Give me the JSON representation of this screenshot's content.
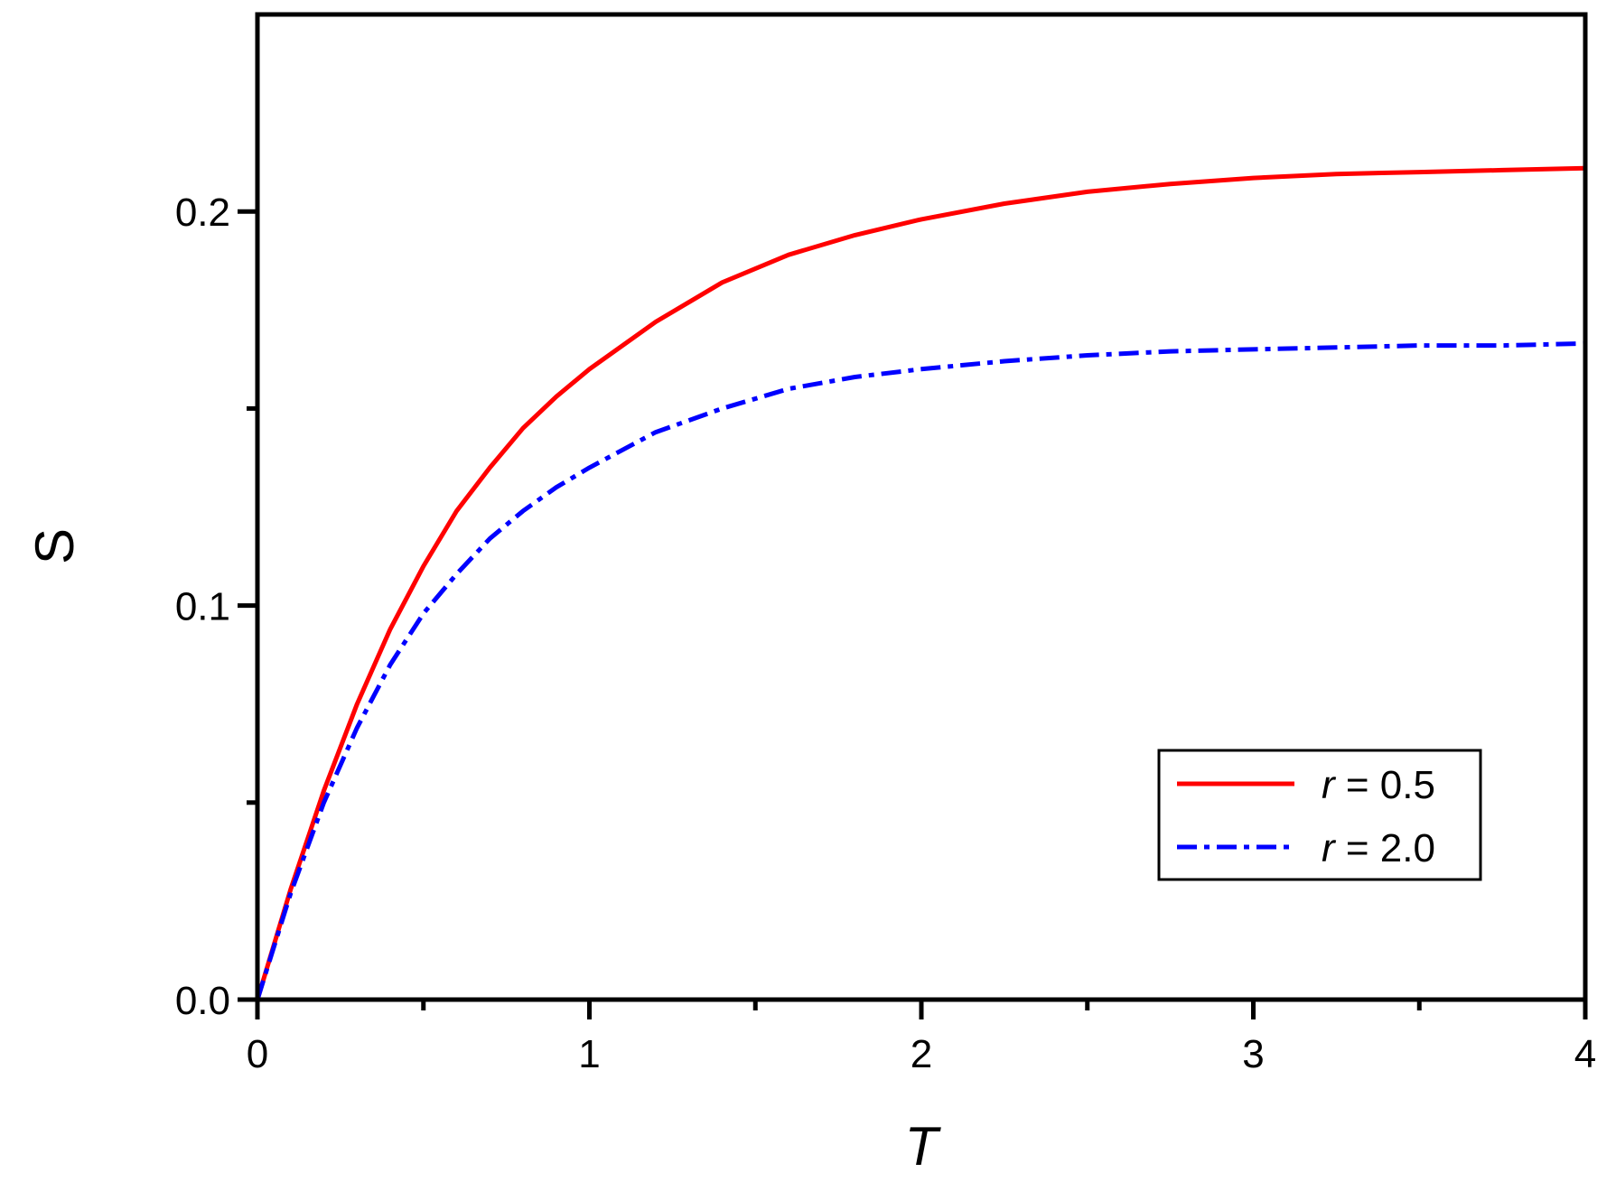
{
  "chart_data": {
    "type": "line",
    "title": "",
    "xlabel": "T",
    "ylabel": "S",
    "xlim": [
      0,
      4
    ],
    "ylim": [
      0,
      0.25
    ],
    "x_ticks": [
      0,
      1,
      2,
      3,
      4
    ],
    "x_tick_labels": [
      "0",
      "1",
      "2",
      "3",
      "4"
    ],
    "x_minor_ticks": [
      0.5,
      1.5,
      2.5,
      3.5
    ],
    "y_ticks": [
      0.0,
      0.1,
      0.2
    ],
    "y_tick_labels": [
      "0.0",
      "0.1",
      "0.2"
    ],
    "y_minor_ticks": [
      0.05,
      0.15
    ],
    "grid": false,
    "legend_position": "lower-right",
    "series": [
      {
        "name": "r = 0.5",
        "legend_var": "r",
        "legend_rest": " = 0.5",
        "color": "#ff0000",
        "style": "solid",
        "x": [
          0,
          0.1,
          0.2,
          0.3,
          0.4,
          0.5,
          0.6,
          0.7,
          0.8,
          0.9,
          1.0,
          1.2,
          1.4,
          1.6,
          1.8,
          2.0,
          2.25,
          2.5,
          2.75,
          3.0,
          3.25,
          3.5,
          3.75,
          4.0
        ],
        "y": [
          0,
          0.028,
          0.053,
          0.075,
          0.094,
          0.11,
          0.124,
          0.135,
          0.145,
          0.153,
          0.16,
          0.172,
          0.182,
          0.189,
          0.194,
          0.198,
          0.202,
          0.205,
          0.207,
          0.2085,
          0.2095,
          0.21,
          0.2105,
          0.211
        ]
      },
      {
        "name": "r = 2.0",
        "legend_var": "r",
        "legend_rest": " = 2.0",
        "color": "#0000ff",
        "style": "dash-dot",
        "x": [
          0,
          0.1,
          0.2,
          0.3,
          0.4,
          0.5,
          0.6,
          0.7,
          0.8,
          0.9,
          1.0,
          1.2,
          1.4,
          1.6,
          1.8,
          2.0,
          2.25,
          2.5,
          2.75,
          3.0,
          3.25,
          3.5,
          3.75,
          4.0
        ],
        "y": [
          0,
          0.027,
          0.05,
          0.069,
          0.085,
          0.098,
          0.108,
          0.117,
          0.124,
          0.13,
          0.135,
          0.144,
          0.15,
          0.155,
          0.158,
          0.16,
          0.162,
          0.1635,
          0.1645,
          0.165,
          0.1655,
          0.166,
          0.166,
          0.1665
        ]
      }
    ]
  }
}
